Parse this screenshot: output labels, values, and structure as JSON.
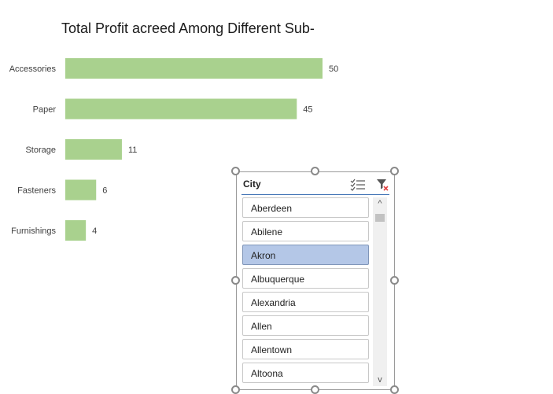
{
  "chart_data": {
    "type": "bar",
    "title": "Total Profit acreed   Among Different Sub-",
    "categories": [
      "Accessories",
      "Paper",
      "Storage",
      "Fasteners",
      "Furnishings"
    ],
    "values": [
      50,
      45,
      11,
      6,
      4
    ],
    "orientation": "horizontal",
    "bar_color": "#a9d18e",
    "xlim": [
      0,
      50
    ],
    "grid": false,
    "legend": "none"
  },
  "slicer": {
    "title": "City",
    "items": [
      {
        "label": "Aberdeen",
        "selected": false
      },
      {
        "label": "Abilene",
        "selected": false
      },
      {
        "label": "Akron",
        "selected": true
      },
      {
        "label": "Albuquerque",
        "selected": false
      },
      {
        "label": "Alexandria",
        "selected": false
      },
      {
        "label": "Allen",
        "selected": false
      },
      {
        "label": "Allentown",
        "selected": false
      },
      {
        "label": "Altoona",
        "selected": false
      }
    ],
    "selected_color": "#b4c7e7",
    "scroll_up": "^",
    "scroll_down": "v",
    "icons": [
      "multi-select-icon",
      "clear-filter-icon"
    ]
  }
}
